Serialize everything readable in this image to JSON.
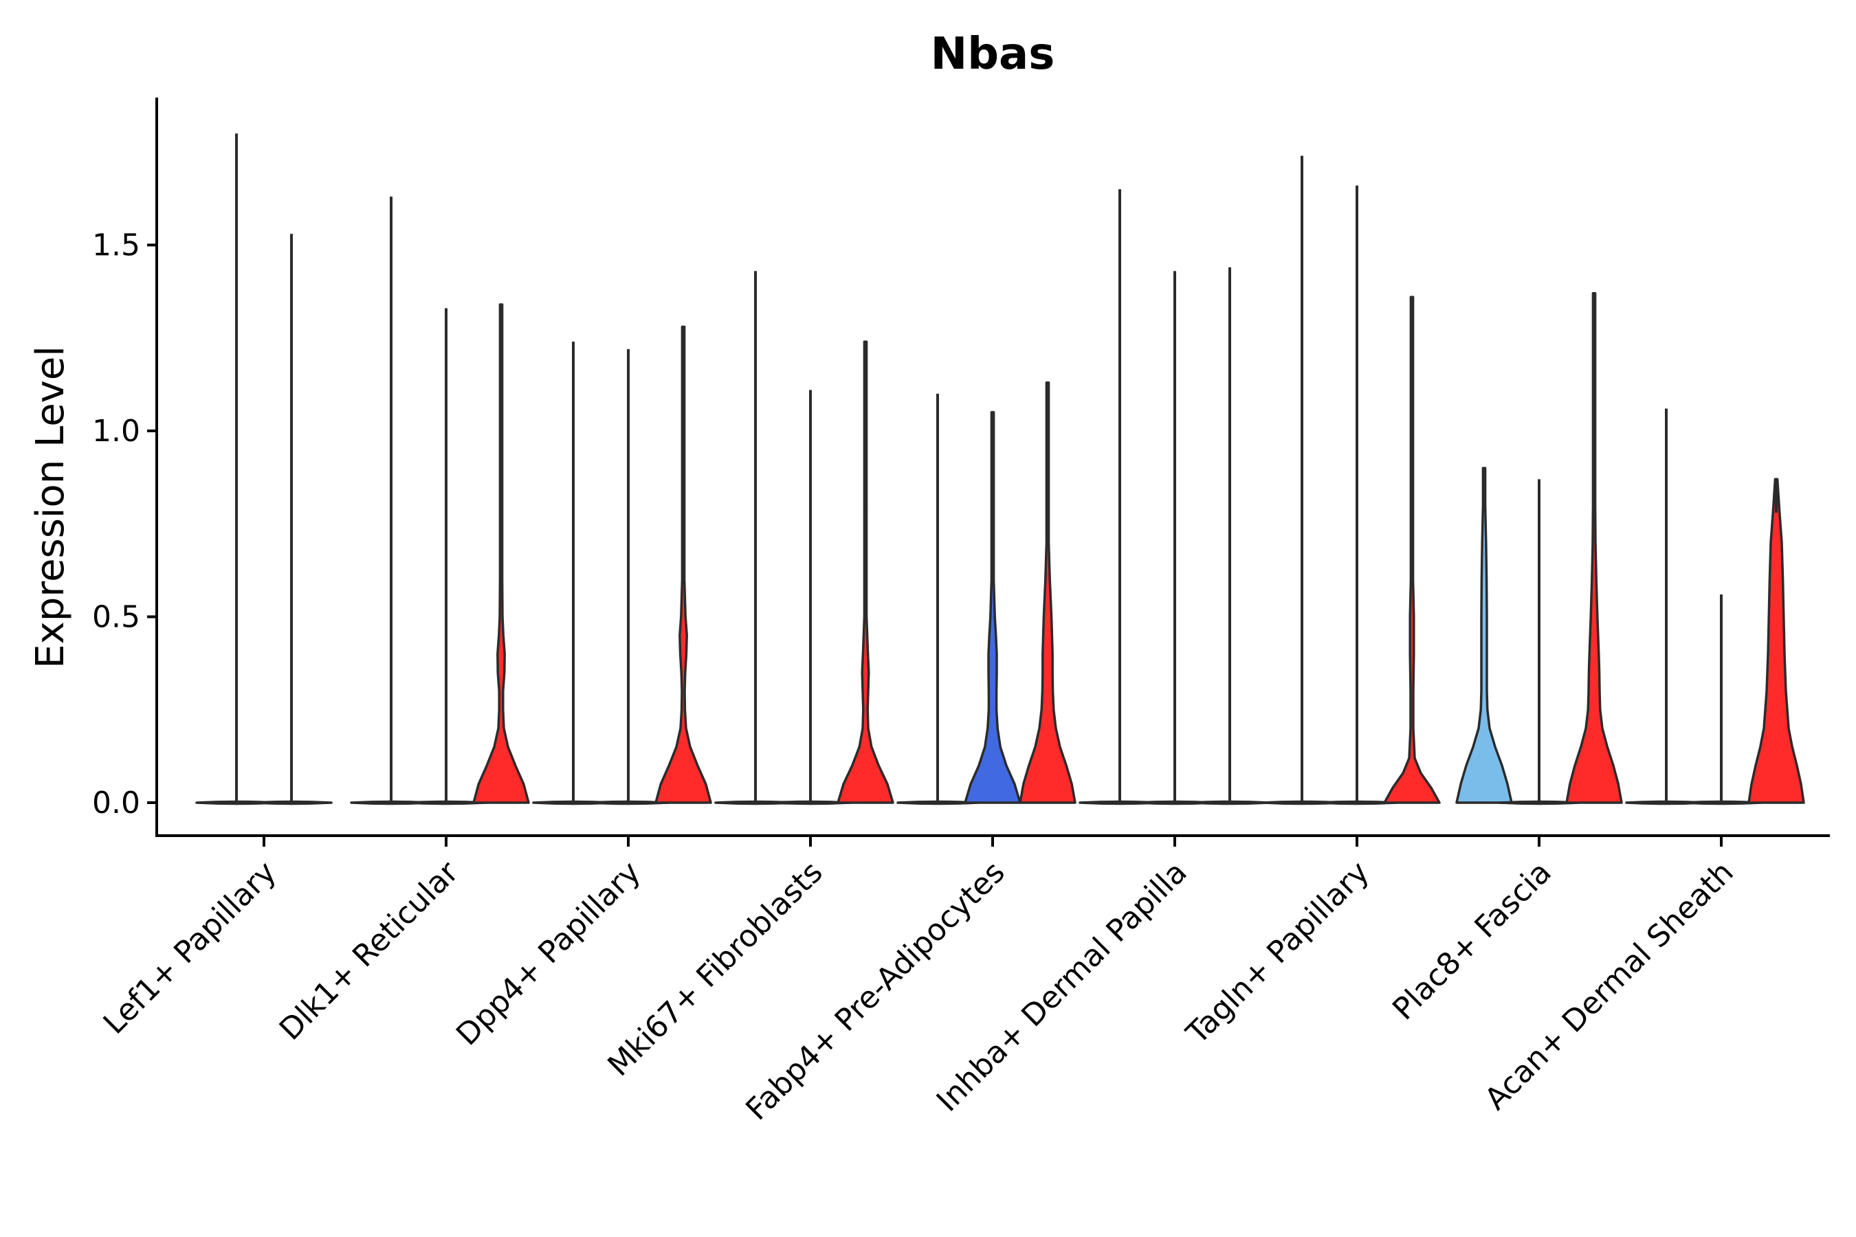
{
  "chart_data": {
    "type": "violin",
    "title": "Nbas",
    "xlabel": "",
    "ylabel": "Expression Level",
    "ylim": [
      -0.09,
      1.9
    ],
    "yticks": [
      0.0,
      0.5,
      1.0,
      1.5
    ],
    "ytick_labels": [
      "0.0",
      "0.5",
      "1.0",
      "1.5"
    ],
    "grid": false,
    "legend": "none",
    "categories": [
      "Lef1+ Papillary",
      "Dlk1+ Reticular",
      "Dpp4+ Papillary",
      "Mki67+ Fibroblasts",
      "Fabp4+ Pre-Adipocytes",
      "Inhba+ Dermal Papilla",
      "Tagln+ Papillary",
      "Plac8+ Fascia",
      "Acan+ Dermal Sheath"
    ],
    "colors": {
      "red": "#ff2a2a",
      "blue": "#4169e1",
      "light_blue": "#7bbdea"
    },
    "groups": [
      {
        "category": "Lef1+ Papillary",
        "violins": [
          {
            "color": "none",
            "max": 1.8
          },
          {
            "color": "none",
            "max": 1.53
          }
        ]
      },
      {
        "category": "Dlk1+ Reticular",
        "violins": [
          {
            "color": "none",
            "max": 1.63
          },
          {
            "color": "none",
            "max": 1.33
          },
          {
            "color": "red",
            "max": 1.34,
            "profile": [
              [
                0,
                1.0
              ],
              [
                0.05,
                0.82
              ],
              [
                0.1,
                0.52
              ],
              [
                0.15,
                0.25
              ],
              [
                0.2,
                0.1
              ],
              [
                0.25,
                0.07
              ],
              [
                0.3,
                0.07
              ],
              [
                0.35,
                0.12
              ],
              [
                0.4,
                0.13
              ],
              [
                0.45,
                0.08
              ],
              [
                0.5,
                0.05
              ],
              [
                0.6,
                0.03
              ],
              [
                0.8,
                0.01
              ],
              [
                1.0,
                0.005
              ],
              [
                1.34,
                0
              ]
            ]
          }
        ]
      },
      {
        "category": "Dpp4+ Papillary",
        "violins": [
          {
            "color": "none",
            "max": 1.24
          },
          {
            "color": "none",
            "max": 1.22
          },
          {
            "color": "red",
            "max": 1.28,
            "profile": [
              [
                0,
                1.0
              ],
              [
                0.05,
                0.82
              ],
              [
                0.1,
                0.52
              ],
              [
                0.15,
                0.25
              ],
              [
                0.2,
                0.1
              ],
              [
                0.25,
                0.06
              ],
              [
                0.3,
                0.05
              ],
              [
                0.35,
                0.07
              ],
              [
                0.4,
                0.11
              ],
              [
                0.45,
                0.13
              ],
              [
                0.5,
                0.08
              ],
              [
                0.6,
                0.04
              ],
              [
                0.8,
                0.01
              ],
              [
                1.0,
                0.005
              ],
              [
                1.28,
                0
              ]
            ]
          }
        ]
      },
      {
        "category": "Mki67+ Fibroblasts",
        "violins": [
          {
            "color": "none",
            "max": 1.43
          },
          {
            "color": "none",
            "max": 1.11
          },
          {
            "color": "red",
            "max": 1.24,
            "profile": [
              [
                0,
                1.0
              ],
              [
                0.05,
                0.8
              ],
              [
                0.1,
                0.48
              ],
              [
                0.15,
                0.22
              ],
              [
                0.2,
                0.1
              ],
              [
                0.25,
                0.08
              ],
              [
                0.3,
                0.1
              ],
              [
                0.35,
                0.12
              ],
              [
                0.4,
                0.09
              ],
              [
                0.5,
                0.04
              ],
              [
                0.6,
                0.02
              ],
              [
                0.8,
                0.01
              ],
              [
                1.24,
                0
              ]
            ]
          }
        ]
      },
      {
        "category": "Fabp4+ Pre-Adipocytes",
        "violins": [
          {
            "color": "none",
            "max": 1.1
          },
          {
            "color": "blue",
            "max": 1.05,
            "profile": [
              [
                0,
                1.0
              ],
              [
                0.05,
                0.8
              ],
              [
                0.1,
                0.5
              ],
              [
                0.15,
                0.28
              ],
              [
                0.2,
                0.18
              ],
              [
                0.25,
                0.14
              ],
              [
                0.3,
                0.14
              ],
              [
                0.35,
                0.15
              ],
              [
                0.4,
                0.15
              ],
              [
                0.45,
                0.12
              ],
              [
                0.5,
                0.08
              ],
              [
                0.6,
                0.02
              ],
              [
                0.8,
                0.005
              ],
              [
                1.05,
                0
              ]
            ]
          },
          {
            "color": "red",
            "max": 1.13,
            "profile": [
              [
                0,
                1.0
              ],
              [
                0.05,
                0.88
              ],
              [
                0.1,
                0.68
              ],
              [
                0.15,
                0.45
              ],
              [
                0.2,
                0.3
              ],
              [
                0.25,
                0.22
              ],
              [
                0.3,
                0.19
              ],
              [
                0.35,
                0.18
              ],
              [
                0.4,
                0.18
              ],
              [
                0.5,
                0.14
              ],
              [
                0.6,
                0.08
              ],
              [
                0.7,
                0.03
              ],
              [
                0.8,
                0.01
              ],
              [
                1.13,
                0
              ]
            ]
          }
        ]
      },
      {
        "category": "Inhba+ Dermal Papilla",
        "violins": [
          {
            "color": "none",
            "max": 1.65
          },
          {
            "color": "none",
            "max": 1.43
          },
          {
            "color": "none",
            "max": 1.44
          }
        ]
      },
      {
        "category": "Tagln+ Papillary",
        "violins": [
          {
            "color": "none",
            "max": 1.74
          },
          {
            "color": "none",
            "max": 1.66
          },
          {
            "color": "red",
            "max": 1.36,
            "profile": [
              [
                0,
                1.0
              ],
              [
                0.04,
                0.7
              ],
              [
                0.08,
                0.32
              ],
              [
                0.12,
                0.1
              ],
              [
                0.2,
                0.05
              ],
              [
                0.3,
                0.05
              ],
              [
                0.4,
                0.07
              ],
              [
                0.5,
                0.07
              ],
              [
                0.6,
                0.04
              ],
              [
                0.7,
                0.02
              ],
              [
                0.9,
                0.005
              ],
              [
                1.36,
                0
              ]
            ]
          }
        ]
      },
      {
        "category": "Plac8+ Fascia",
        "violins": [
          {
            "color": "light_blue",
            "max": 0.9,
            "profile": [
              [
                0,
                1.0
              ],
              [
                0.05,
                0.85
              ],
              [
                0.1,
                0.65
              ],
              [
                0.15,
                0.4
              ],
              [
                0.2,
                0.2
              ],
              [
                0.25,
                0.12
              ],
              [
                0.3,
                0.1
              ],
              [
                0.4,
                0.1
              ],
              [
                0.5,
                0.1
              ],
              [
                0.6,
                0.09
              ],
              [
                0.7,
                0.07
              ],
              [
                0.8,
                0.04
              ],
              [
                0.9,
                0
              ]
            ]
          },
          {
            "color": "none",
            "max": 0.87
          },
          {
            "color": "red",
            "max": 1.37,
            "profile": [
              [
                0,
                1.0
              ],
              [
                0.05,
                0.88
              ],
              [
                0.1,
                0.7
              ],
              [
                0.15,
                0.48
              ],
              [
                0.2,
                0.3
              ],
              [
                0.25,
                0.22
              ],
              [
                0.3,
                0.2
              ],
              [
                0.35,
                0.19
              ],
              [
                0.4,
                0.17
              ],
              [
                0.5,
                0.12
              ],
              [
                0.6,
                0.08
              ],
              [
                0.7,
                0.05
              ],
              [
                0.8,
                0.03
              ],
              [
                1.0,
                0.01
              ],
              [
                1.37,
                0
              ]
            ]
          }
        ]
      },
      {
        "category": "Acan+ Dermal Sheath",
        "violins": [
          {
            "color": "none",
            "max": 1.06
          },
          {
            "color": "none",
            "max": 0.56
          },
          {
            "color": "red",
            "max": 0.87,
            "profile": [
              [
                0,
                1.0
              ],
              [
                0.05,
                0.9
              ],
              [
                0.1,
                0.75
              ],
              [
                0.15,
                0.58
              ],
              [
                0.2,
                0.45
              ],
              [
                0.3,
                0.35
              ],
              [
                0.4,
                0.3
              ],
              [
                0.5,
                0.27
              ],
              [
                0.6,
                0.24
              ],
              [
                0.7,
                0.2
              ],
              [
                0.78,
                0.12
              ],
              [
                0.87,
                0
              ]
            ]
          }
        ]
      }
    ]
  }
}
